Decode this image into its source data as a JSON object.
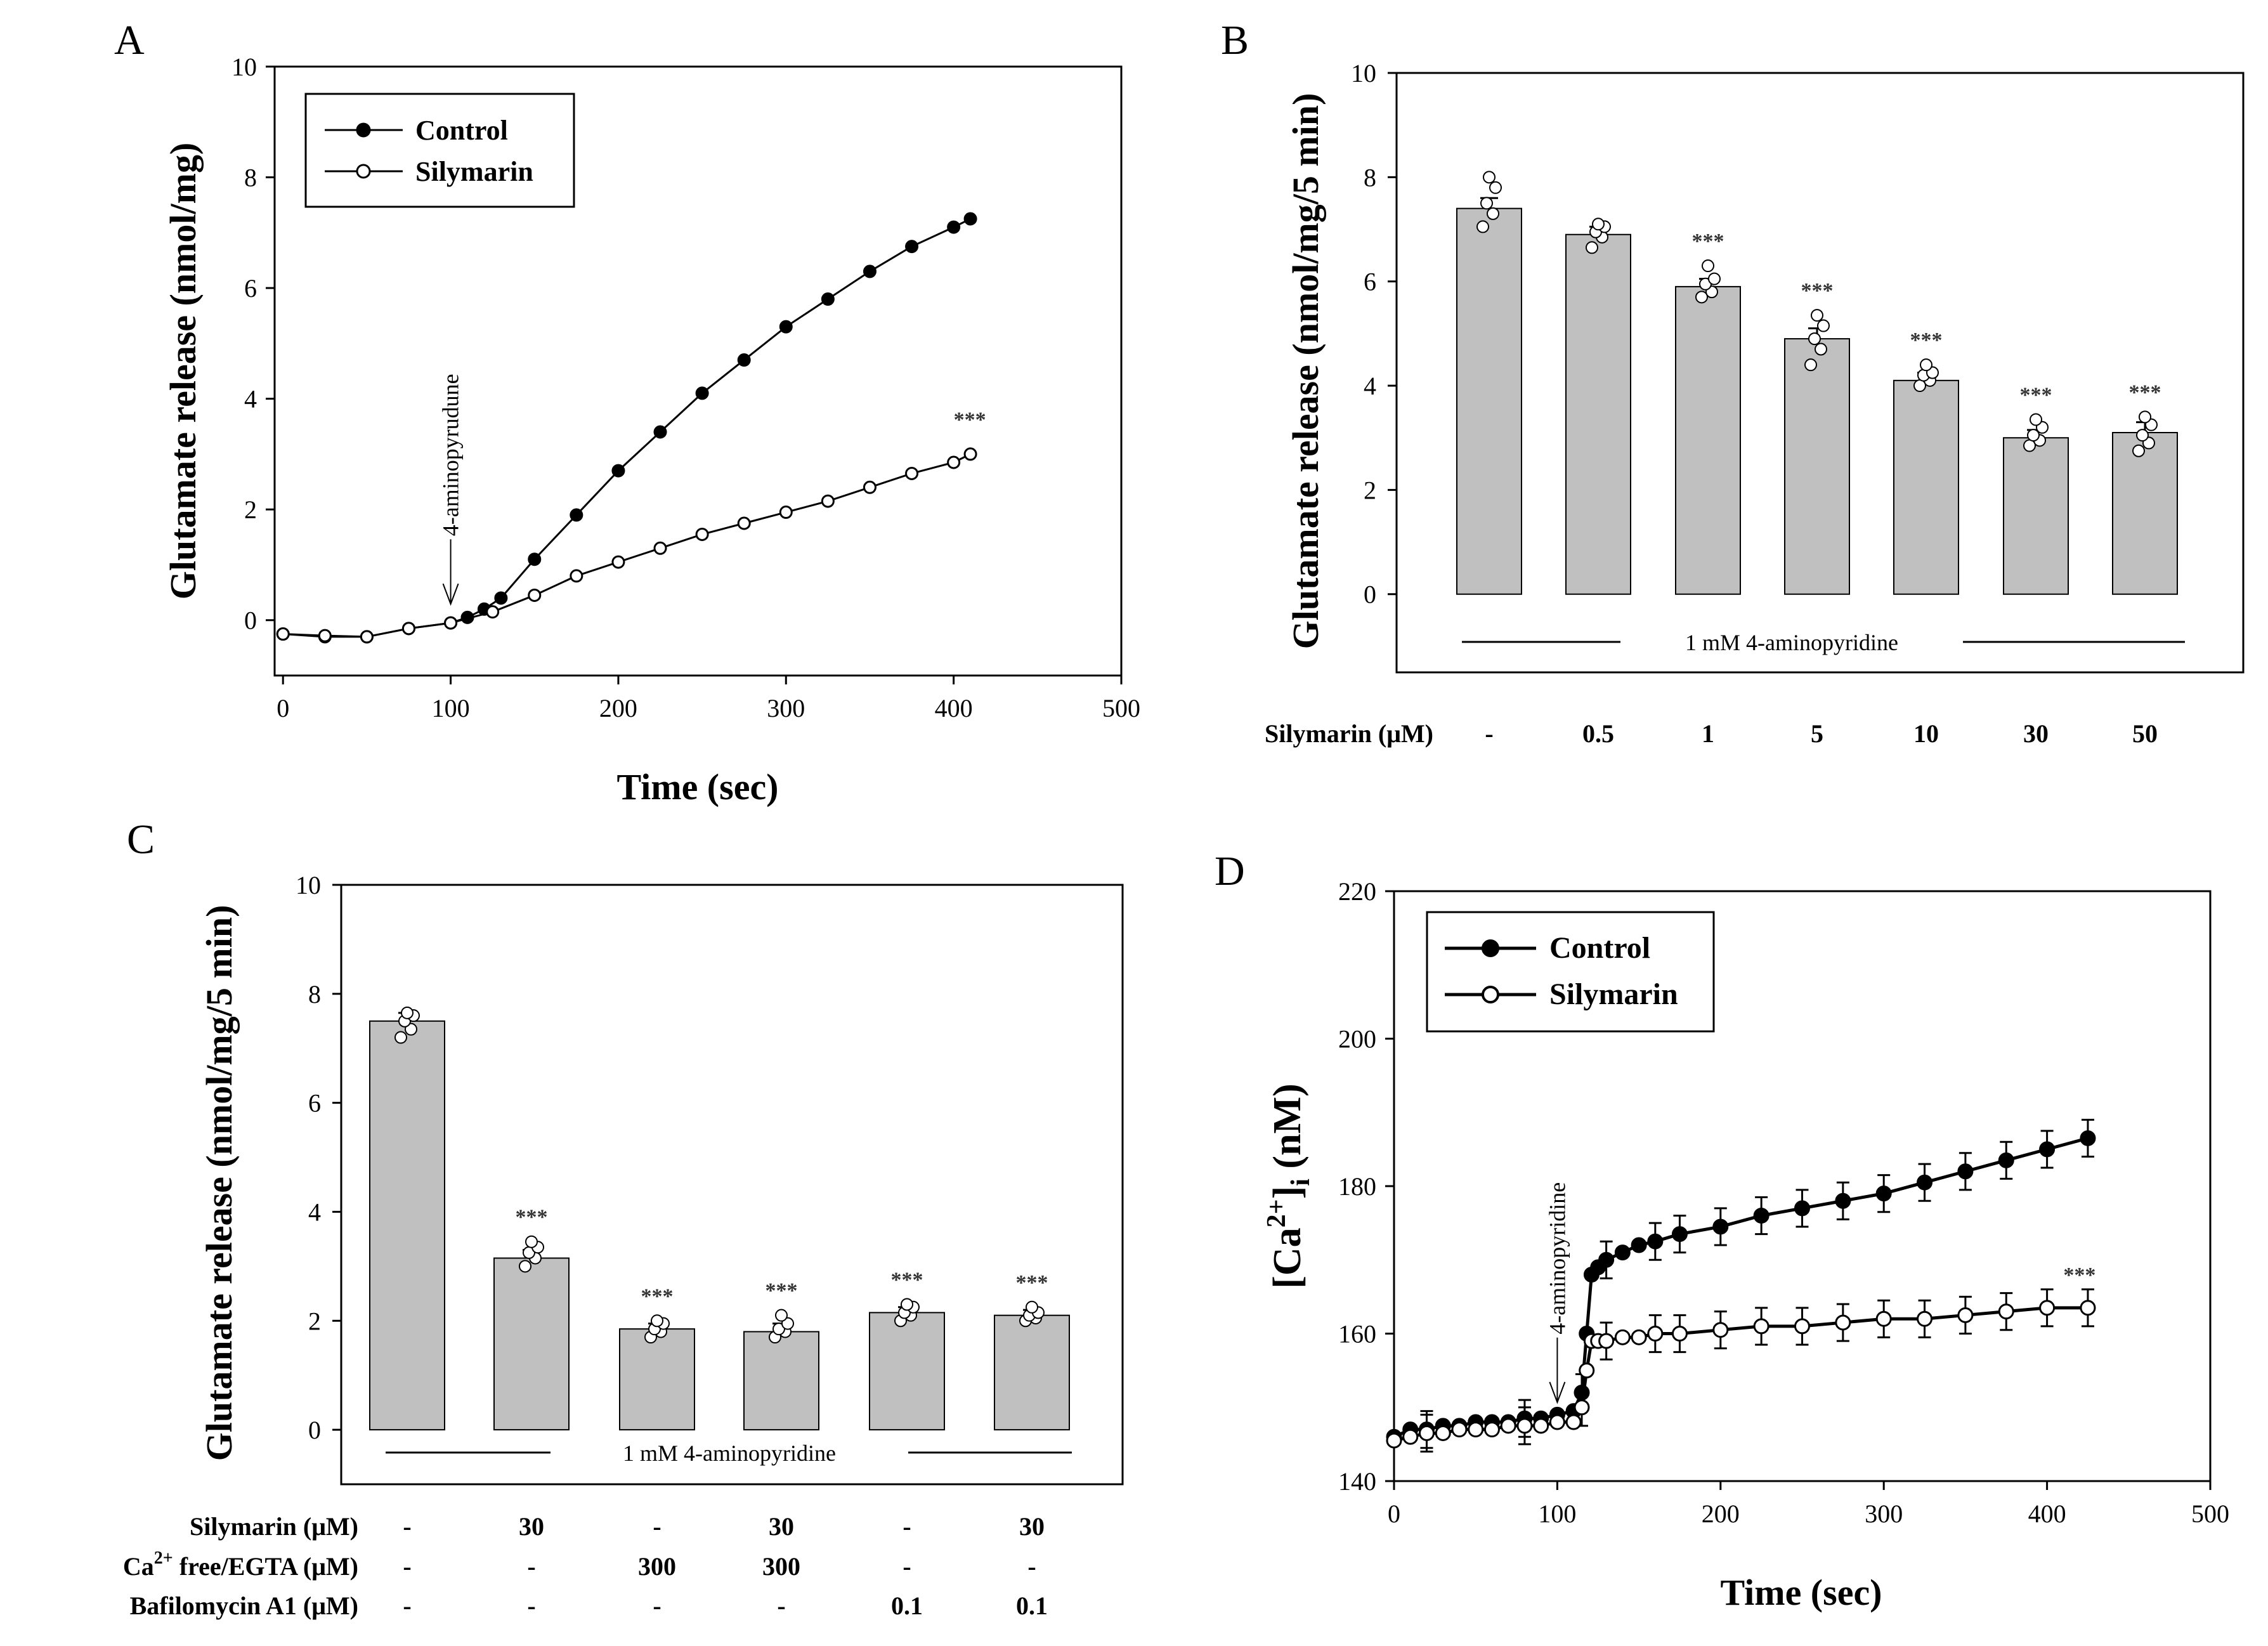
{
  "chart_data": [
    {
      "id": "A",
      "type": "line",
      "panel_label": "A",
      "xlabel": "Time (sec)",
      "ylabel": "Glutamate release (nmol/mg)",
      "xlim": [
        -5,
        500
      ],
      "ylim": [
        -1,
        10
      ],
      "xticks": [
        0,
        100,
        200,
        300,
        400,
        500
      ],
      "yticks": [
        0,
        2,
        4,
        6,
        8,
        10
      ],
      "legend": [
        "Control",
        "Silymarin"
      ],
      "annotation": "4-aminopyrudune",
      "annotation_x": 100,
      "annotation_y": 0.2,
      "significance": "***",
      "significance_x": 400,
      "significance_y": 3.5,
      "series": [
        {
          "name": "Control",
          "marker": "filled",
          "x": [
            0,
            25,
            50,
            75,
            100,
            110,
            120,
            130,
            150,
            175,
            200,
            225,
            250,
            275,
            300,
            325,
            350,
            375,
            400,
            410
          ],
          "y": [
            -0.25,
            -0.3,
            -0.3,
            -0.15,
            -0.05,
            0.05,
            0.2,
            0.4,
            1.1,
            1.9,
            2.7,
            3.4,
            4.1,
            4.7,
            5.3,
            5.8,
            6.3,
            6.75,
            7.1,
            7.25
          ]
        },
        {
          "name": "Silymarin",
          "marker": "open",
          "x": [
            0,
            25,
            50,
            75,
            100,
            125,
            150,
            175,
            200,
            225,
            250,
            275,
            300,
            325,
            350,
            375,
            400,
            410
          ],
          "y": [
            -0.25,
            -0.28,
            -0.3,
            -0.15,
            -0.05,
            0.15,
            0.45,
            0.8,
            1.05,
            1.3,
            1.55,
            1.75,
            1.95,
            2.15,
            2.4,
            2.65,
            2.85,
            3.0
          ]
        }
      ]
    },
    {
      "id": "B",
      "type": "bar",
      "panel_label": "B",
      "ylabel": "Glutamate release (nmol/mg/5 min)",
      "ylim": [
        -1.5,
        10
      ],
      "yticks": [
        0,
        2,
        4,
        6,
        8,
        10
      ],
      "categories": [
        "-",
        "0.5",
        "1",
        "5",
        "10",
        "30",
        "50"
      ],
      "values": [
        7.4,
        6.9,
        5.9,
        4.9,
        4.1,
        3.0,
        3.1
      ],
      "errors": [
        0.2,
        0.15,
        0.15,
        0.2,
        0.15,
        0.15,
        0.2
      ],
      "points": [
        [
          7.05,
          7.3,
          7.5,
          7.8,
          8.0
        ],
        [
          6.65,
          6.85,
          6.95,
          7.05,
          7.1
        ],
        [
          5.7,
          5.8,
          5.95,
          6.05,
          6.3
        ],
        [
          4.4,
          4.7,
          4.9,
          5.15,
          5.35
        ],
        [
          4.0,
          4.1,
          4.2,
          4.25,
          4.4
        ],
        [
          2.85,
          2.95,
          3.05,
          3.2,
          3.35
        ],
        [
          2.75,
          2.9,
          3.05,
          3.25,
          3.4
        ]
      ],
      "significance": [
        "",
        "",
        "***",
        "***",
        "***",
        "***",
        "***"
      ],
      "treatment_label": "1 mM 4-aminopyridine",
      "row_label": "Silymarin (μM)"
    },
    {
      "id": "C",
      "type": "bar",
      "panel_label": "C",
      "ylabel": "Glutamate release (nmol/mg/5 min)",
      "ylim": [
        -1,
        10
      ],
      "yticks": [
        0,
        2,
        4,
        6,
        8,
        10
      ],
      "values": [
        7.5,
        3.15,
        1.85,
        1.8,
        2.15,
        2.1
      ],
      "errors": [
        0.15,
        0.15,
        0.1,
        0.15,
        0.1,
        0.1
      ],
      "points": [
        [
          7.2,
          7.35,
          7.5,
          7.6,
          7.65
        ],
        [
          3.0,
          3.15,
          3.25,
          3.35,
          3.45
        ],
        [
          1.7,
          1.8,
          1.85,
          1.95,
          2.0
        ],
        [
          1.7,
          1.8,
          1.85,
          1.95,
          2.1
        ],
        [
          2.0,
          2.1,
          2.15,
          2.25,
          2.3
        ],
        [
          2.0,
          2.05,
          2.1,
          2.15,
          2.25
        ]
      ],
      "significance": [
        "",
        "***",
        "***",
        "***",
        "***",
        "***"
      ],
      "treatment_label": "1 mM 4-aminopyridine",
      "conditions": [
        {
          "label_pre": "Silymarin (μM)",
          "label_sup": "",
          "label_post": "",
          "values": [
            "-",
            "30",
            "-",
            "30",
            "-",
            "30"
          ]
        },
        {
          "label_pre": "Ca",
          "label_sup": "2+",
          "label_post": " free/EGTA (μM)",
          "values": [
            "-",
            "-",
            "300",
            "300",
            "-",
            "-"
          ]
        },
        {
          "label_pre": "Bafilomycin A1 (μM)",
          "label_sup": "",
          "label_post": "",
          "values": [
            "-",
            "-",
            "-",
            "-",
            "0.1",
            "0.1"
          ]
        }
      ]
    },
    {
      "id": "D",
      "type": "line",
      "panel_label": "D",
      "xlabel": "Time (sec)",
      "ylabel_main": "[Ca",
      "ylabel_sup": "2+",
      "ylabel_close": "]",
      "ylabel_sub": "i",
      "ylabel_units": " (nM)",
      "xlim": [
        0,
        500
      ],
      "ylim": [
        140,
        220
      ],
      "xticks": [
        0,
        100,
        200,
        300,
        400,
        500
      ],
      "yticks": [
        140,
        160,
        180,
        200,
        220
      ],
      "legend": [
        "Control",
        "Silymarin"
      ],
      "annotation": "4-aminopyridine",
      "annotation_x": 100,
      "annotation_y": 150,
      "significance": "***",
      "significance_x": 410,
      "significance_y": 167,
      "series": [
        {
          "name": "Control",
          "marker": "filled",
          "x": [
            0,
            10,
            20,
            30,
            40,
            50,
            60,
            70,
            80,
            90,
            100,
            110,
            115,
            118,
            121,
            125,
            130,
            140,
            150,
            160,
            175,
            200,
            225,
            250,
            275,
            300,
            325,
            350,
            375,
            400,
            425
          ],
          "y": [
            146,
            147,
            147,
            147.5,
            147.5,
            148,
            148,
            148,
            148.5,
            148.5,
            149,
            149.5,
            152,
            160,
            168,
            169,
            170,
            171,
            172,
            172.5,
            173.5,
            174.5,
            176,
            177,
            178,
            179,
            180.5,
            182,
            183.5,
            185,
            186.5
          ],
          "err_idx": [
            2,
            8,
            12,
            16,
            19,
            20,
            21,
            22,
            23,
            24,
            25,
            26,
            27,
            28,
            29,
            30
          ],
          "err": 2.5
        },
        {
          "name": "Silymarin",
          "marker": "open",
          "x": [
            0,
            10,
            20,
            30,
            40,
            50,
            60,
            70,
            80,
            90,
            100,
            110,
            115,
            118,
            121,
            125,
            130,
            140,
            150,
            160,
            175,
            200,
            225,
            250,
            275,
            300,
            325,
            350,
            375,
            400,
            425
          ],
          "y": [
            145.5,
            146,
            146.5,
            146.5,
            147,
            147,
            147,
            147.5,
            147.5,
            147.5,
            148,
            148,
            150,
            155,
            159,
            159,
            159,
            159.5,
            159.5,
            160,
            160,
            160.5,
            161,
            161,
            161.5,
            162,
            162,
            162.5,
            163,
            163.5,
            163.5
          ],
          "err_idx": [
            2,
            8,
            12,
            16,
            19,
            20,
            21,
            22,
            23,
            24,
            25,
            26,
            27,
            28,
            29,
            30
          ],
          "err": 2.5
        }
      ]
    }
  ]
}
